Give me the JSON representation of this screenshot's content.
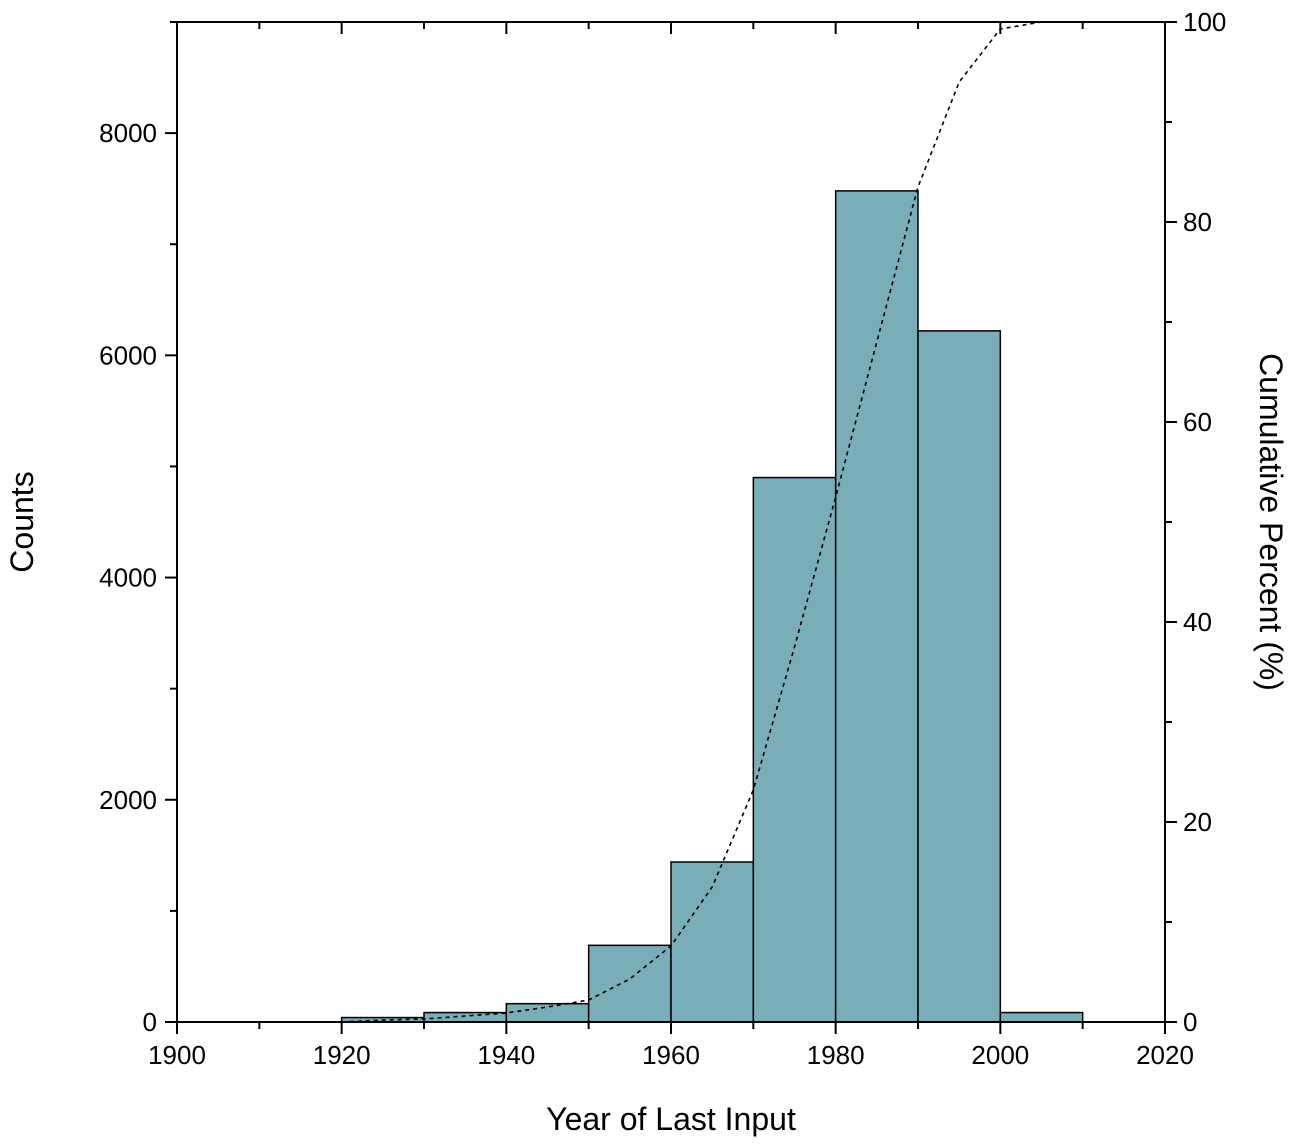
{
  "chart_data": {
    "type": "bar",
    "subtype": "histogram with cumulative percent curve",
    "title": "",
    "xlabel": "Year of Last Input",
    "ylabel": "Counts",
    "y2label": "Cumulative Percent (%)",
    "xlim": [
      1900,
      2020
    ],
    "ylim": [
      0,
      9000
    ],
    "y2lim": [
      0,
      100
    ],
    "x_ticks": [
      1900,
      1920,
      1940,
      1960,
      1980,
      2000,
      2020
    ],
    "y_ticks": [
      0,
      2000,
      4000,
      6000,
      8000
    ],
    "y2_ticks": [
      0,
      20,
      40,
      60,
      80,
      100
    ],
    "bin_width": 10,
    "bins": [
      {
        "start": 1920,
        "end": 1930,
        "count": 40
      },
      {
        "start": 1930,
        "end": 1940,
        "count": 85
      },
      {
        "start": 1940,
        "end": 1950,
        "count": 165
      },
      {
        "start": 1950,
        "end": 1960,
        "count": 690
      },
      {
        "start": 1960,
        "end": 1970,
        "count": 1440
      },
      {
        "start": 1970,
        "end": 1980,
        "count": 4900
      },
      {
        "start": 1980,
        "end": 1990,
        "count": 7480
      },
      {
        "start": 1990,
        "end": 2000,
        "count": 6220
      },
      {
        "start": 2000,
        "end": 2010,
        "count": 85
      }
    ],
    "cumulative_curve": {
      "style": "dotted",
      "points": [
        [
          1920,
          0
        ],
        [
          1925,
          0.2
        ],
        [
          1930,
          0.3
        ],
        [
          1935,
          0.6
        ],
        [
          1940,
          0.9
        ],
        [
          1945,
          1.5
        ],
        [
          1950,
          2.2
        ],
        [
          1955,
          4.3
        ],
        [
          1960,
          7.6
        ],
        [
          1965,
          13.5
        ],
        [
          1970,
          23.2
        ],
        [
          1975,
          37.5
        ],
        [
          1980,
          52.5
        ],
        [
          1985,
          68.0
        ],
        [
          1990,
          83.5
        ],
        [
          1995,
          94.0
        ],
        [
          2000,
          99.3
        ],
        [
          2005,
          100
        ]
      ]
    },
    "bar_color": "#79aeb9",
    "bar_edge_color": "#000000",
    "grid": false,
    "legend": "none"
  }
}
